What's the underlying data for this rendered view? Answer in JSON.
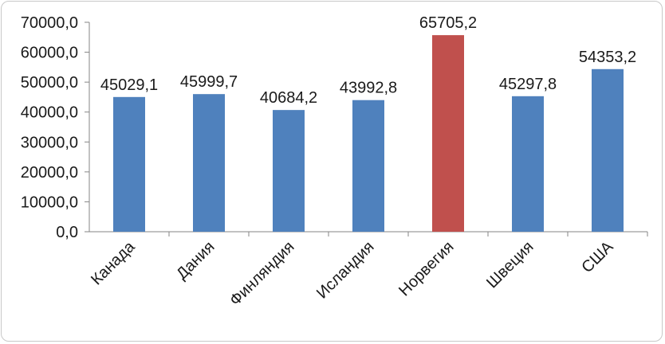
{
  "chart_data": {
    "type": "bar",
    "categories": [
      "Канада",
      "Дания",
      "Финляндия",
      "Исландия",
      "Норвегия",
      "Швеция",
      "США"
    ],
    "values": [
      45029.1,
      45999.7,
      40684.2,
      43992.8,
      65705.2,
      45297.8,
      54353.2
    ],
    "data_labels": [
      "45029,1",
      "45999,7",
      "40684,2",
      "43992,8",
      "65705,2",
      "45297,8",
      "54353,2"
    ],
    "bar_colors": [
      "#4f81bd",
      "#4f81bd",
      "#4f81bd",
      "#4f81bd",
      "#c0504d",
      "#4f81bd",
      "#4f81bd"
    ],
    "ylim": [
      0,
      70000
    ],
    "ytick_values": [
      0,
      10000,
      20000,
      30000,
      40000,
      50000,
      60000,
      70000
    ],
    "ytick_labels": [
      "0,0",
      "10000,0",
      "20000,0",
      "30000,0",
      "40000,0",
      "50000,0",
      "60000,0",
      "70000,0"
    ],
    "title": "",
    "xlabel": "",
    "ylabel": "",
    "grid": false,
    "legend": "none"
  }
}
